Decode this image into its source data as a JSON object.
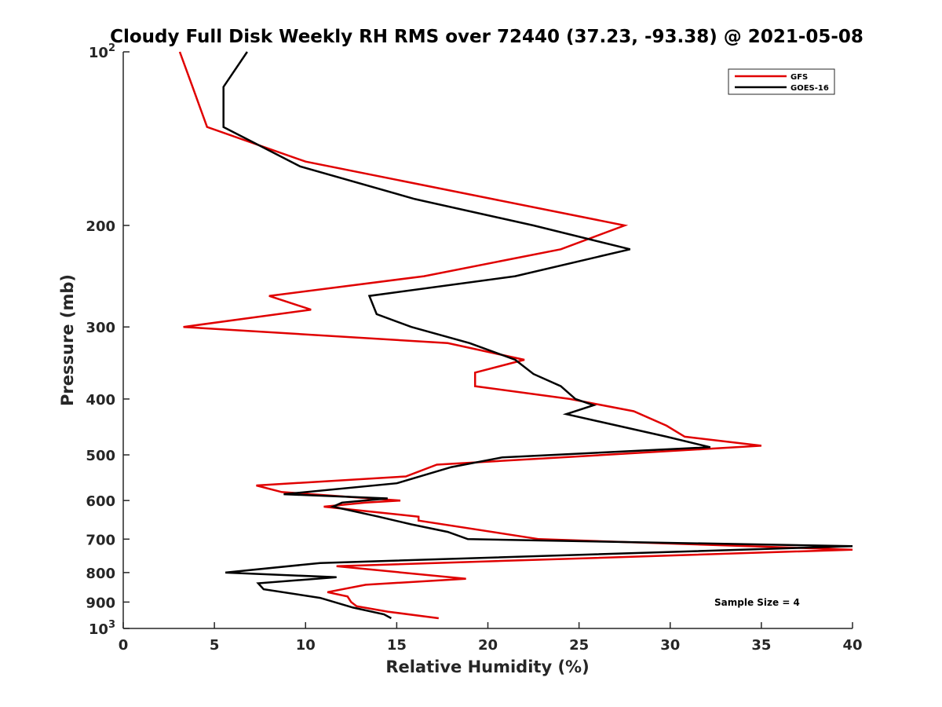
{
  "chart_data": {
    "type": "line",
    "title": "Cloudy Full Disk Weekly RH RMS over 72440 (37.23, -93.38) @ 2021-05-08",
    "xlabel": "Relative Humidity (%)",
    "ylabel": "Pressure (mb)",
    "xlim": [
      0,
      40
    ],
    "ylim": [
      100,
      1000
    ],
    "yscale": "log",
    "y_reversed": true,
    "xticks": [
      "0",
      "5",
      "10",
      "15",
      "20",
      "25",
      "30",
      "35",
      "40"
    ],
    "yticks": [
      {
        "value": 100,
        "base": "10",
        "exp": "2"
      },
      {
        "value": 200,
        "label": "200"
      },
      {
        "value": 300,
        "label": "300"
      },
      {
        "value": 400,
        "label": "400"
      },
      {
        "value": 500,
        "label": "500"
      },
      {
        "value": 600,
        "label": "600"
      },
      {
        "value": 700,
        "label": "700"
      },
      {
        "value": 800,
        "label": "800"
      },
      {
        "value": 900,
        "label": "900"
      },
      {
        "value": 1000,
        "base": "10",
        "exp": "3"
      }
    ],
    "legend_position": "top-right",
    "grid": false,
    "annotation": "Sample Size = 4",
    "series": [
      {
        "name": "GFS",
        "color": "#e00000",
        "points": [
          {
            "x": 3.1,
            "p": 100
          },
          {
            "x": 3.8,
            "p": 115
          },
          {
            "x": 4.6,
            "p": 135
          },
          {
            "x": 10.0,
            "p": 155
          },
          {
            "x": 27.5,
            "p": 200
          },
          {
            "x": 24.0,
            "p": 220
          },
          {
            "x": 16.5,
            "p": 245
          },
          {
            "x": 8.0,
            "p": 265
          },
          {
            "x": 10.3,
            "p": 280
          },
          {
            "x": 3.3,
            "p": 300
          },
          {
            "x": 17.8,
            "p": 320
          },
          {
            "x": 22.0,
            "p": 342
          },
          {
            "x": 19.3,
            "p": 360
          },
          {
            "x": 19.3,
            "p": 380
          },
          {
            "x": 24.5,
            "p": 400
          },
          {
            "x": 28.0,
            "p": 420
          },
          {
            "x": 29.8,
            "p": 445
          },
          {
            "x": 30.8,
            "p": 465
          },
          {
            "x": 35.0,
            "p": 482
          },
          {
            "x": 17.2,
            "p": 520
          },
          {
            "x": 15.5,
            "p": 545
          },
          {
            "x": 7.3,
            "p": 565
          },
          {
            "x": 8.7,
            "p": 580
          },
          {
            "x": 15.2,
            "p": 600
          },
          {
            "x": 13.3,
            "p": 605
          },
          {
            "x": 11.0,
            "p": 615
          },
          {
            "x": 16.2,
            "p": 640
          },
          {
            "x": 16.2,
            "p": 650
          },
          {
            "x": 22.8,
            "p": 700
          },
          {
            "x": 40.0,
            "p": 730
          },
          {
            "x": 11.7,
            "p": 780
          },
          {
            "x": 18.8,
            "p": 820
          },
          {
            "x": 13.3,
            "p": 840
          },
          {
            "x": 11.2,
            "p": 865
          },
          {
            "x": 12.3,
            "p": 880
          },
          {
            "x": 12.5,
            "p": 900
          },
          {
            "x": 12.8,
            "p": 915
          },
          {
            "x": 14.5,
            "p": 935
          },
          {
            "x": 17.3,
            "p": 960
          }
        ]
      },
      {
        "name": "GOES-16",
        "color": "#000000",
        "points": [
          {
            "x": 6.8,
            "p": 100
          },
          {
            "x": 5.5,
            "p": 115
          },
          {
            "x": 5.5,
            "p": 135
          },
          {
            "x": 9.7,
            "p": 158
          },
          {
            "x": 16.0,
            "p": 180
          },
          {
            "x": 22.5,
            "p": 200
          },
          {
            "x": 27.8,
            "p": 220
          },
          {
            "x": 21.5,
            "p": 245
          },
          {
            "x": 13.5,
            "p": 265
          },
          {
            "x": 13.9,
            "p": 285
          },
          {
            "x": 15.8,
            "p": 300
          },
          {
            "x": 19.0,
            "p": 320
          },
          {
            "x": 21.5,
            "p": 342
          },
          {
            "x": 22.5,
            "p": 362
          },
          {
            "x": 24.0,
            "p": 380
          },
          {
            "x": 24.8,
            "p": 400
          },
          {
            "x": 25.8,
            "p": 410
          },
          {
            "x": 24.3,
            "p": 425
          },
          {
            "x": 29.8,
            "p": 465
          },
          {
            "x": 32.2,
            "p": 485
          },
          {
            "x": 20.8,
            "p": 505
          },
          {
            "x": 18.0,
            "p": 525
          },
          {
            "x": 15.0,
            "p": 560
          },
          {
            "x": 8.8,
            "p": 585
          },
          {
            "x": 14.5,
            "p": 595
          },
          {
            "x": 12.0,
            "p": 605
          },
          {
            "x": 11.5,
            "p": 615
          },
          {
            "x": 14.0,
            "p": 640
          },
          {
            "x": 15.8,
            "p": 660
          },
          {
            "x": 17.8,
            "p": 680
          },
          {
            "x": 18.9,
            "p": 700
          },
          {
            "x": 40.0,
            "p": 720
          },
          {
            "x": 10.8,
            "p": 770
          },
          {
            "x": 5.6,
            "p": 800
          },
          {
            "x": 11.7,
            "p": 815
          },
          {
            "x": 7.4,
            "p": 835
          },
          {
            "x": 7.7,
            "p": 855
          },
          {
            "x": 10.8,
            "p": 885
          },
          {
            "x": 12.6,
            "p": 920
          },
          {
            "x": 14.3,
            "p": 945
          },
          {
            "x": 14.7,
            "p": 960
          }
        ]
      }
    ]
  }
}
